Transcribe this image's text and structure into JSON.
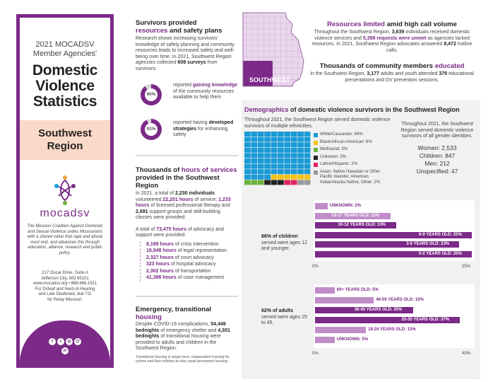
{
  "left": {
    "year_line": "2021 MOCADSV",
    "agencies_line": "Member Agencies'",
    "title_1": "Domestic",
    "title_2": "Violence",
    "title_3": "Statistics",
    "region_1": "Southwest",
    "region_2": "Region",
    "logo_text": "mocadsv",
    "about": "The Missouri Coalition Against Domestic and Sexual Violence unites Missourians with a shared value that rape and abuse must end, and advances this through education, alliance, research and public policy.",
    "address_1": "217 Oscar Drive, Suite A",
    "address_2": "Jefferson City, MO 65101",
    "web_phone": "www.mocadsv.org • 888.666.1911",
    "tty_1": "For D/deaf and Hard-of-Hearing",
    "tty_2": "and Late Deafened, dial 711",
    "tty_3": "for Relay Missouri.",
    "social_icons": [
      "facebook-icon",
      "twitter-icon",
      "instagram-icon",
      "email-icon",
      "linkedin-icon"
    ]
  },
  "survivors": {
    "title_a": "Survivors provided",
    "title_b": "resources",
    "title_c": " and safety plans",
    "body": "Research shows increasing survivors' knowledge of safety planning and community resources leads to increased safety and well-being over time. In 2021, Southwest Region agencies collected",
    "body_bold": "608 surveys",
    "body_end": " from survivors.",
    "stat1_pct": "90%",
    "stat1_value": 90,
    "stat1_a": "reported ",
    "stat1_b": "gaining knowledge",
    "stat1_c": " of the community resources available to help them",
    "stat2_pct": "93%",
    "stat2_value": 93,
    "stat2_a": "reported having ",
    "stat2_b": "developed strategies",
    "stat2_c": " for enhancing safety"
  },
  "map": {
    "label": "SOUTHWEST"
  },
  "resources": {
    "title_a": "Resources limited",
    "title_b": " amid high call volume",
    "body_1": "Throughout the Southwest Region, ",
    "num_1": "3,639",
    "body_2": " individuals received domestic violence services and ",
    "num_2": "5,399 requests were unmet",
    "body_3": " as agencies lacked resources. In 2021, Southwest Region advocates answered ",
    "num_3": "8,472",
    "body_4": " hotline calls."
  },
  "educated": {
    "title_a": "Thousands of community members ",
    "title_b": "educated",
    "body_1": "In the Southwest Region, ",
    "num_1": "3,177",
    "body_2": " adults and youth attended ",
    "num_2": "379",
    "body_3": " educational presentations and DV prevention sessions."
  },
  "services": {
    "title_a": "Thousands of ",
    "title_b": "hours of services",
    "title_c": "provided in the Southwest Region",
    "body_1": "In 2021, a total of ",
    "num_1": "2,230 individuals",
    "body_2": " volunteered ",
    "num_2": "22,201 hours",
    "body_3": " of service; ",
    "num_3": "1,233 hours",
    "body_4": " of licensed professional therapy and ",
    "num_4": "2,691",
    "body_5": " support groups and skill-building classes were provided.",
    "body_6a": "A total of ",
    "num_6": "73,475 hours",
    "body_6b": " of advocacy and support were provided.",
    "items": [
      {
        "num": "8,189 hours",
        "text": " of crisis intervention"
      },
      {
        "num": "18,948 hours",
        "text": " of legal representation"
      },
      {
        "num": "2,327 hours",
        "text": " of court advocacy"
      },
      {
        "num": "323 hours",
        "text": " of hospital advocacy"
      },
      {
        "num": "2,302 hours",
        "text": " of transportation"
      },
      {
        "num": "41,386 hours",
        "text": " of case management"
      }
    ]
  },
  "housing": {
    "title_a": "Emergency, transitional ",
    "title_b": "housing",
    "body_1": "Despite COVID-19 complications, ",
    "num_1": "54,449 bednights",
    "body_2": " of emergency shelter and ",
    "num_2": "4,301 bednights",
    "body_3": " of transitional housing were provided to adults and children in the Southwest Region.",
    "footnote": "Transitional housing is longer-term, independent housing for victims and their children as they await permanent housing."
  },
  "demographics": {
    "title_a": "Demographics",
    "title_b": " of domestic violence survivors in the Southwest Region",
    "intro": "Throughout 2021, the Southwest Region served domestic violence survivors of multiple ethnicities.",
    "ethnicities": [
      {
        "label": "White/Caucasian: 84%",
        "value": 84,
        "color": "#1a9ad6"
      },
      {
        "label": "Black/African American: 6%",
        "value": 6,
        "color": "#f2c21a"
      },
      {
        "label": "Multiracial: 3%",
        "value": 3,
        "color": "#6cb33f"
      },
      {
        "label": "Unknown: 3%",
        "value": 3,
        "color": "#222222"
      },
      {
        "label": "Latino/Hispanic: 2%",
        "value": 2,
        "color": "#e0245e"
      },
      {
        "label": "Asian, Native Hawaiian or Other Pacific Islander, American Indian/Alaska Native, Other: 2%",
        "value": 2,
        "color": "#999999"
      }
    ],
    "gender_intro": "Throughout 2021, the Southwest Region served domestic violence survivors of all gender identities.",
    "gender": [
      {
        "label": "Women:",
        "value": "2,533"
      },
      {
        "label": "Children:",
        "value": "847"
      },
      {
        "label": "Men:",
        "value": "212"
      },
      {
        "label": "Unspecified:",
        "value": "47"
      }
    ]
  },
  "chart_data": [
    {
      "type": "bar",
      "title": "",
      "note_bold": "86% of children",
      "note": "served were ages 12 and younger.",
      "categories": [
        "UNKNOWN: 2%",
        "13-17 YEARS OLD: 12%",
        "10-12 YEARS OLD: 13%",
        "6-9 YEARS OLD: 25%",
        "3-5 YEARS OLD: 23%",
        "0-2 YEARS OLD: 25%"
      ],
      "values": [
        2,
        12,
        13,
        25,
        23,
        25
      ],
      "shade": [
        "light",
        "light",
        "dark",
        "dark",
        "dark",
        "dark"
      ],
      "xlim": [
        0,
        25
      ],
      "tick_labels": [
        "0%",
        "25%"
      ]
    },
    {
      "type": "bar",
      "title": "",
      "note_bold": "62% of adults",
      "note": "served were ages 25 to 45.",
      "categories": [
        "60+ YEARS OLD: 5%",
        "46-59 YEARS OLD: 15%",
        "36-45 YEARS OLD: 25%",
        "25-35 YEARS OLD: 37%",
        "18-24 YEARS OLD: 13%",
        "UNKNOWN: 5%"
      ],
      "values": [
        5,
        15,
        25,
        37,
        13,
        5
      ],
      "shade": [
        "light",
        "light",
        "dark",
        "dark",
        "light",
        "light"
      ],
      "xlim": [
        0,
        40
      ],
      "tick_labels": [
        "0%",
        "40%"
      ]
    }
  ]
}
